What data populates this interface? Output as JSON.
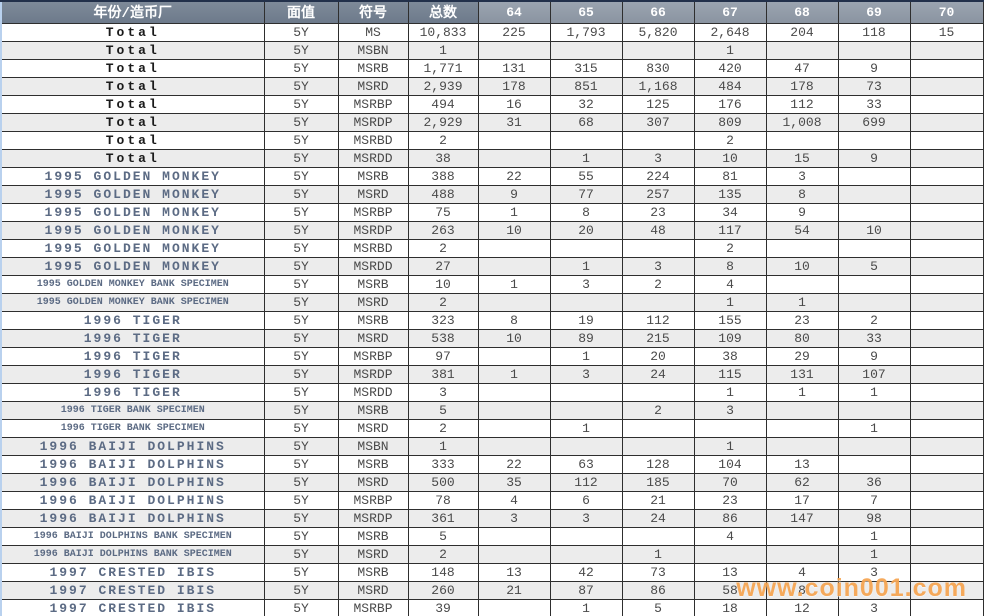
{
  "chart_data": {
    "type": "table",
    "columns": [
      "年份/造币厂",
      "面值",
      "符号",
      "总数",
      "64",
      "65",
      "66",
      "67",
      "68",
      "69",
      "70"
    ],
    "rows": [
      {
        "name": "Total",
        "denom": "5Y",
        "symbol": "MS",
        "total": "10,833",
        "grades": [
          "225",
          "1,793",
          "5,820",
          "2,648",
          "204",
          "118",
          "15"
        ]
      },
      {
        "name": "Total",
        "denom": "5Y",
        "symbol": "MSBN",
        "total": "1",
        "grades": [
          "",
          "",
          "",
          "1",
          "",
          "",
          ""
        ]
      },
      {
        "name": "Total",
        "denom": "5Y",
        "symbol": "MSRB",
        "total": "1,771",
        "grades": [
          "131",
          "315",
          "830",
          "420",
          "47",
          "9",
          ""
        ]
      },
      {
        "name": "Total",
        "denom": "5Y",
        "symbol": "MSRD",
        "total": "2,939",
        "grades": [
          "178",
          "851",
          "1,168",
          "484",
          "178",
          "73",
          ""
        ]
      },
      {
        "name": "Total",
        "denom": "5Y",
        "symbol": "MSRBP",
        "total": "494",
        "grades": [
          "16",
          "32",
          "125",
          "176",
          "112",
          "33",
          ""
        ]
      },
      {
        "name": "Total",
        "denom": "5Y",
        "symbol": "MSRDP",
        "total": "2,929",
        "grades": [
          "31",
          "68",
          "307",
          "809",
          "1,008",
          "699",
          ""
        ]
      },
      {
        "name": "Total",
        "denom": "5Y",
        "symbol": "MSRBD",
        "total": "2",
        "grades": [
          "",
          "",
          "",
          "2",
          "",
          "",
          ""
        ]
      },
      {
        "name": "Total",
        "denom": "5Y",
        "symbol": "MSRDD",
        "total": "38",
        "grades": [
          "",
          "1",
          "3",
          "10",
          "15",
          "9",
          ""
        ]
      },
      {
        "name": "1995 GOLDEN MONKEY",
        "denom": "5Y",
        "symbol": "MSRB",
        "total": "388",
        "grades": [
          "22",
          "55",
          "224",
          "81",
          "3",
          "",
          ""
        ]
      },
      {
        "name": "1995 GOLDEN MONKEY",
        "denom": "5Y",
        "symbol": "MSRD",
        "total": "488",
        "grades": [
          "9",
          "77",
          "257",
          "135",
          "8",
          "",
          ""
        ]
      },
      {
        "name": "1995 GOLDEN MONKEY",
        "denom": "5Y",
        "symbol": "MSRBP",
        "total": "75",
        "grades": [
          "1",
          "8",
          "23",
          "34",
          "9",
          "",
          ""
        ]
      },
      {
        "name": "1995 GOLDEN MONKEY",
        "denom": "5Y",
        "symbol": "MSRDP",
        "total": "263",
        "grades": [
          "10",
          "20",
          "48",
          "117",
          "54",
          "10",
          ""
        ]
      },
      {
        "name": "1995 GOLDEN MONKEY",
        "denom": "5Y",
        "symbol": "MSRBD",
        "total": "2",
        "grades": [
          "",
          "",
          "",
          "2",
          "",
          "",
          ""
        ]
      },
      {
        "name": "1995 GOLDEN MONKEY",
        "denom": "5Y",
        "symbol": "MSRDD",
        "total": "27",
        "grades": [
          "",
          "1",
          "3",
          "8",
          "10",
          "5",
          ""
        ]
      },
      {
        "name": "1995 GOLDEN MONKEY BANK SPECIMEN",
        "denom": "5Y",
        "symbol": "MSRB",
        "total": "10",
        "grades": [
          "1",
          "3",
          "2",
          "4",
          "",
          "",
          ""
        ]
      },
      {
        "name": "1995 GOLDEN MONKEY BANK SPECIMEN",
        "denom": "5Y",
        "symbol": "MSRD",
        "total": "2",
        "grades": [
          "",
          "",
          "",
          "1",
          "1",
          "",
          ""
        ]
      },
      {
        "name": "1996 TIGER",
        "denom": "5Y",
        "symbol": "MSRB",
        "total": "323",
        "grades": [
          "8",
          "19",
          "112",
          "155",
          "23",
          "2",
          ""
        ]
      },
      {
        "name": "1996 TIGER",
        "denom": "5Y",
        "symbol": "MSRD",
        "total": "538",
        "grades": [
          "10",
          "89",
          "215",
          "109",
          "80",
          "33",
          ""
        ]
      },
      {
        "name": "1996 TIGER",
        "denom": "5Y",
        "symbol": "MSRBP",
        "total": "97",
        "grades": [
          "",
          "1",
          "20",
          "38",
          "29",
          "9",
          ""
        ]
      },
      {
        "name": "1996 TIGER",
        "denom": "5Y",
        "symbol": "MSRDP",
        "total": "381",
        "grades": [
          "1",
          "3",
          "24",
          "115",
          "131",
          "107",
          ""
        ]
      },
      {
        "name": "1996 TIGER",
        "denom": "5Y",
        "symbol": "MSRDD",
        "total": "3",
        "grades": [
          "",
          "",
          "",
          "1",
          "1",
          "1",
          ""
        ]
      },
      {
        "name": "1996 TIGER BANK SPECIMEN",
        "denom": "5Y",
        "symbol": "MSRB",
        "total": "5",
        "grades": [
          "",
          "",
          "2",
          "3",
          "",
          "",
          ""
        ]
      },
      {
        "name": "1996 TIGER BANK SPECIMEN",
        "denom": "5Y",
        "symbol": "MSRD",
        "total": "2",
        "grades": [
          "",
          "1",
          "",
          "",
          "",
          "1",
          ""
        ]
      },
      {
        "name": "1996 BAIJI DOLPHINS",
        "denom": "5Y",
        "symbol": "MSBN",
        "total": "1",
        "grades": [
          "",
          "",
          "",
          "1",
          "",
          "",
          ""
        ]
      },
      {
        "name": "1996 BAIJI DOLPHINS",
        "denom": "5Y",
        "symbol": "MSRB",
        "total": "333",
        "grades": [
          "22",
          "63",
          "128",
          "104",
          "13",
          "",
          ""
        ]
      },
      {
        "name": "1996 BAIJI DOLPHINS",
        "denom": "5Y",
        "symbol": "MSRD",
        "total": "500",
        "grades": [
          "35",
          "112",
          "185",
          "70",
          "62",
          "36",
          ""
        ]
      },
      {
        "name": "1996 BAIJI DOLPHINS",
        "denom": "5Y",
        "symbol": "MSRBP",
        "total": "78",
        "grades": [
          "4",
          "6",
          "21",
          "23",
          "17",
          "7",
          ""
        ]
      },
      {
        "name": "1996 BAIJI DOLPHINS",
        "denom": "5Y",
        "symbol": "MSRDP",
        "total": "361",
        "grades": [
          "3",
          "3",
          "24",
          "86",
          "147",
          "98",
          ""
        ]
      },
      {
        "name": "1996 BAIJI DOLPHINS BANK SPECIMEN",
        "denom": "5Y",
        "symbol": "MSRB",
        "total": "5",
        "grades": [
          "",
          "",
          "",
          "4",
          "",
          "1",
          ""
        ]
      },
      {
        "name": "1996 BAIJI DOLPHINS BANK SPECIMEN",
        "denom": "5Y",
        "symbol": "MSRD",
        "total": "2",
        "grades": [
          "",
          "",
          "1",
          "",
          "",
          "1",
          ""
        ]
      },
      {
        "name": "1997 CRESTED IBIS",
        "denom": "5Y",
        "symbol": "MSRB",
        "total": "148",
        "grades": [
          "13",
          "42",
          "73",
          "13",
          "4",
          "3",
          ""
        ]
      },
      {
        "name": "1997 CRESTED IBIS",
        "denom": "5Y",
        "symbol": "MSRD",
        "total": "260",
        "grades": [
          "21",
          "87",
          "86",
          "58",
          "8",
          "",
          ""
        ]
      },
      {
        "name": "1997 CRESTED IBIS",
        "denom": "5Y",
        "symbol": "MSRBP",
        "total": "39",
        "grades": [
          "",
          "1",
          "5",
          "18",
          "12",
          "3",
          ""
        ]
      }
    ]
  },
  "watermark": "www.coin001.com",
  "colors": {
    "header_left_bg": "#73808f",
    "header_grade_bg": "#929ca8",
    "header_text": "#ffffff",
    "row_alt_bg": "#ececec",
    "name_text": "#5c6b84",
    "total_row_text": "#1a1a1a",
    "value_text": "#4a4a4a",
    "border": "#2e2e2e",
    "left_edge": "#b9d1ee",
    "watermark": "#f59e46"
  }
}
